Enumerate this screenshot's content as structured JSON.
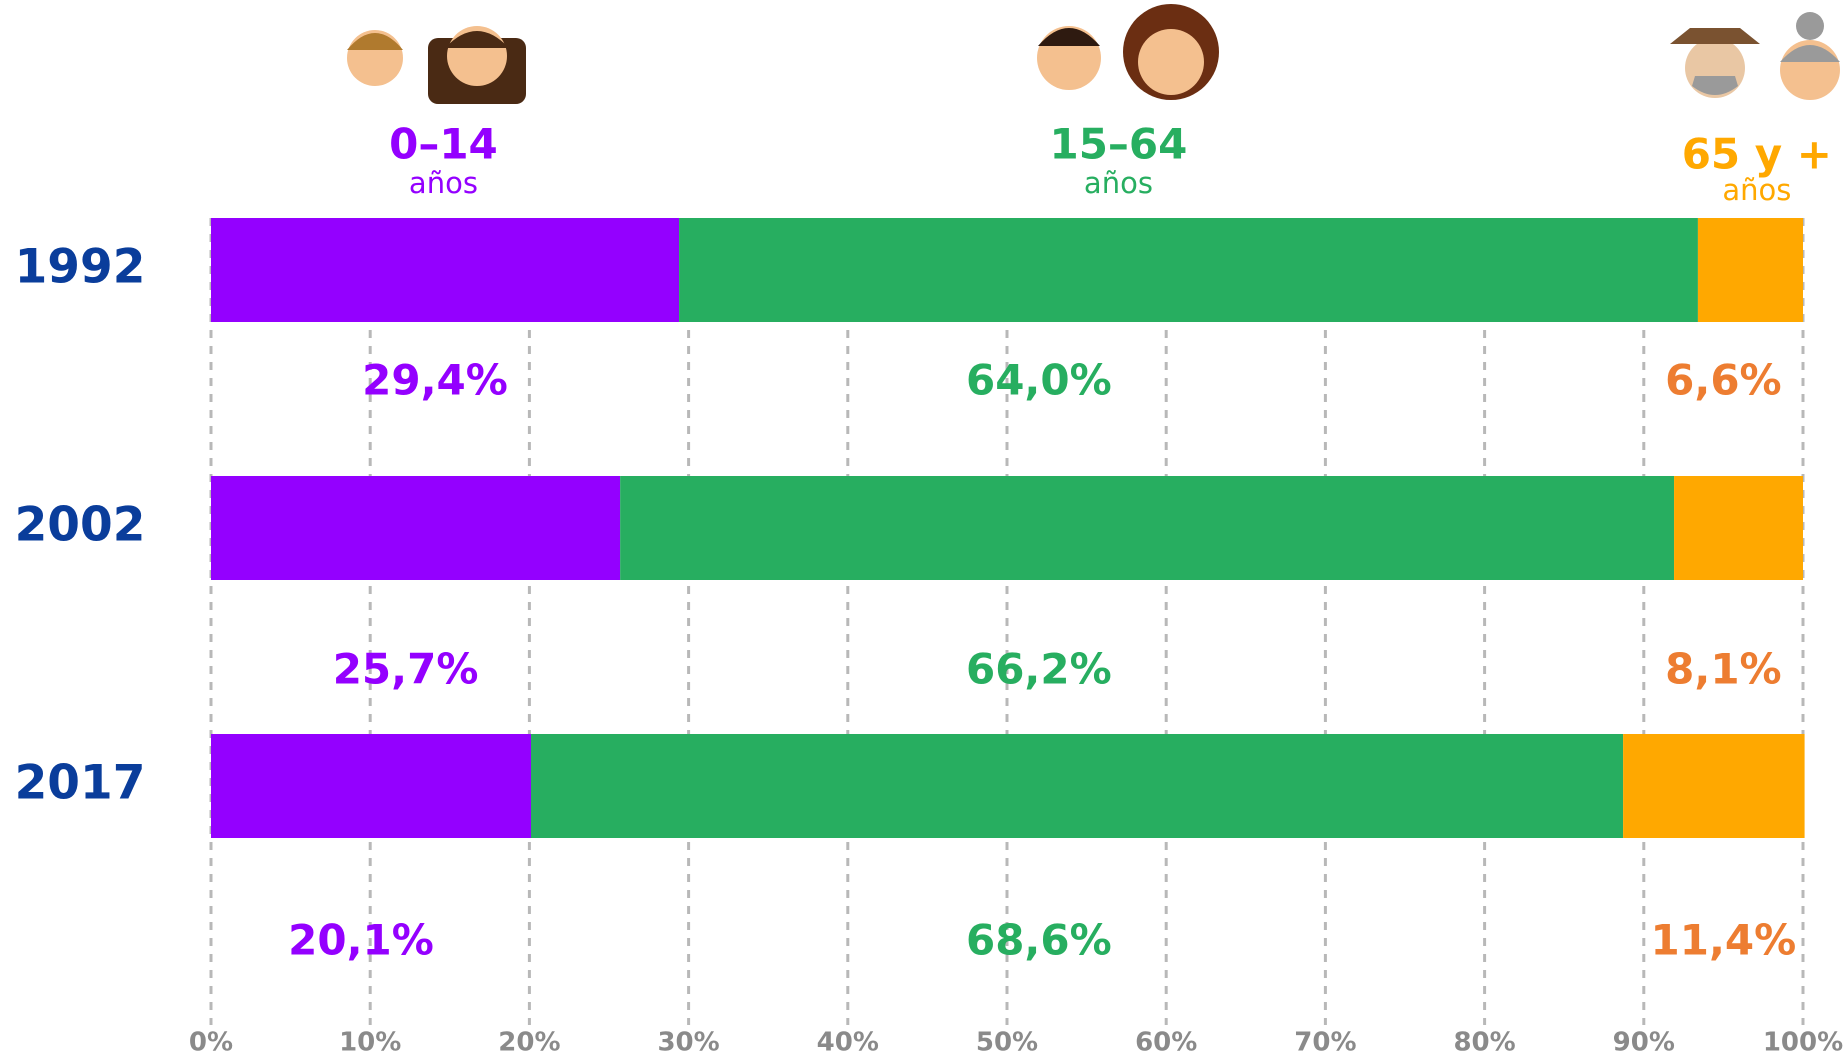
{
  "chart_data": {
    "type": "stacked_barh",
    "categories": [
      "1992",
      "2002",
      "2017"
    ],
    "series": [
      {
        "name": "0–14",
        "sublabel": "años",
        "color": "#9400FF",
        "label_color": "#9400FF",
        "values": [
          29.4,
          25.7,
          20.1
        ],
        "value_labels": [
          "29,4%",
          "25,7%",
          "20,1%"
        ]
      },
      {
        "name": "15–64",
        "sublabel": "años",
        "color": "#27AE60",
        "label_color": "#27AE60",
        "values": [
          64.0,
          66.2,
          68.6
        ],
        "value_labels": [
          "64,0%",
          "66,2%",
          "68,6%"
        ]
      },
      {
        "name": "65 y +",
        "sublabel": "años",
        "color": "#FFA800",
        "label_color": "#ED7D31",
        "values": [
          6.6,
          8.1,
          11.4
        ],
        "value_labels": [
          "6,6%",
          "8,1%",
          "11,4%"
        ]
      }
    ],
    "xlim": [
      0,
      100
    ],
    "xticks": [
      {
        "value": 0,
        "label": "0%"
      },
      {
        "value": 10,
        "label": "10%"
      },
      {
        "value": 20,
        "label": "20%"
      },
      {
        "value": 30,
        "label": "30%"
      },
      {
        "value": 40,
        "label": "40%"
      },
      {
        "value": 50,
        "label": "50%"
      },
      {
        "value": 60,
        "label": "60%"
      },
      {
        "value": 70,
        "label": "70%"
      },
      {
        "value": 80,
        "label": "80%"
      },
      {
        "value": 90,
        "label": "90%"
      },
      {
        "value": 100,
        "label": "100%"
      }
    ],
    "grid": true
  }
}
